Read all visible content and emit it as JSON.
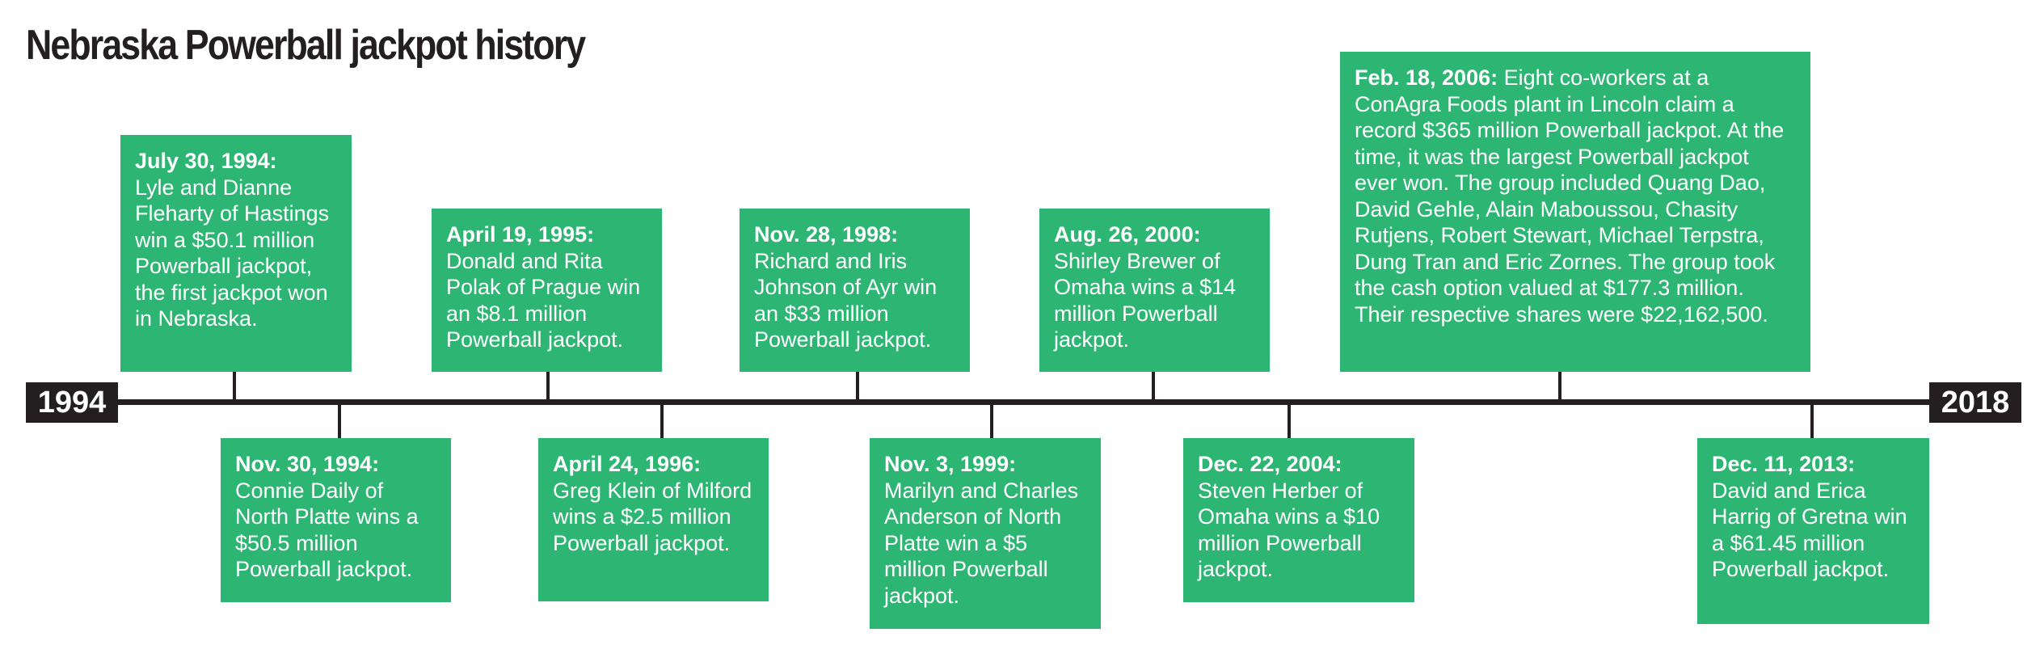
{
  "title": "Nebraska Powerball jackpot history",
  "timeline": {
    "start_year": "1994",
    "end_year": "2018"
  },
  "events": [
    {
      "date": "July 30, 1994:",
      "text": "Lyle and Dianne Fleharty of Hastings win a $50.1 million Powerball jackpot, the first jackpot won in Nebraska."
    },
    {
      "date": "Nov. 30, 1994:",
      "text": "Connie Daily of North Platte wins a $50.5 million Powerball jackpot."
    },
    {
      "date": "April 19, 1995:",
      "text": "Donald and Rita Polak of Prague win an $8.1 million Powerball jackpot."
    },
    {
      "date": "April 24, 1996:",
      "text": "Greg Klein of Milford wins a $2.5 million Powerball jackpot."
    },
    {
      "date": "Nov. 28, 1998:",
      "text": "Richard and Iris Johnson of Ayr win an $33 million Powerball jackpot."
    },
    {
      "date": "Nov. 3, 1999:",
      "text": "Marilyn and Charles Anderson of North Platte win a $5 million Powerball jackpot."
    },
    {
      "date": "Aug. 26, 2000:",
      "text": "Shirley Brewer of Omaha wins a $14 million Powerball jackpot."
    },
    {
      "date": "Dec. 22, 2004:",
      "text": "Steven Herber of Omaha wins a $10 million Powerball jackpot."
    },
    {
      "date": "Feb. 18, 2006:",
      "text": " Eight co-workers at a ConAgra Foods plant in Lincoln claim a record $365 million Powerball jackpot. At the time, it was the largest Powerball jackpot ever won. The group included Quang Dao, David Gehle, Alain Maboussou, Chasity Rutjens, Robert Stewart, Michael Terpstra, Dung Tran and Eric Zornes. The group took the cash option valued at $177.3 million. Their respective shares were $22,162,500."
    },
    {
      "date": "Dec. 11, 2013:",
      "text": "David and Erica Harrig of Gretna win a $61.45 million Powerball jackpot."
    }
  ],
  "colors": {
    "box": "#2db673",
    "line": "#231f20",
    "title": "#231f20",
    "box_text": "#ffffff"
  }
}
